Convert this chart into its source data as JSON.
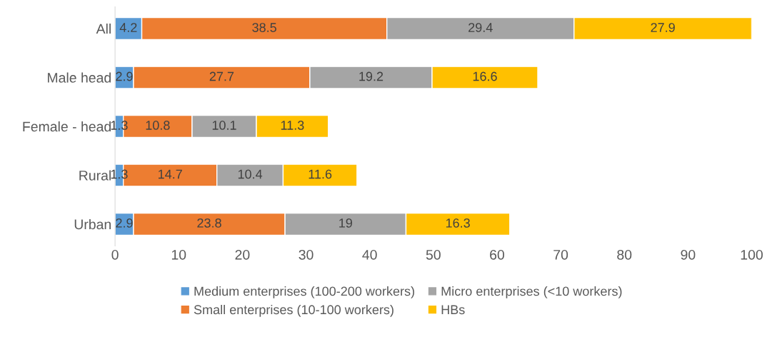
{
  "chart_data": {
    "type": "bar",
    "orientation": "horizontal",
    "stacked": true,
    "categories": [
      "All",
      "Male head",
      "Female - head",
      "Rural",
      "Urban"
    ],
    "series": [
      {
        "name": "Medium enterprises (100-200 workers)",
        "color": "#5b9bd5",
        "values": [
          4.2,
          2.9,
          1.3,
          1.3,
          2.9
        ]
      },
      {
        "name": "Small enterprises (10-100 workers)",
        "color": "#ed7d31",
        "values": [
          38.5,
          27.7,
          10.8,
          14.7,
          23.8
        ]
      },
      {
        "name": "Micro enterprises (<10 workers)",
        "color": "#a5a5a5",
        "values": [
          29.4,
          19.2,
          10.1,
          10.4,
          19
        ]
      },
      {
        "name": "HBs",
        "color": "#ffc000",
        "values": [
          27.9,
          16.6,
          11.3,
          11.6,
          16.3
        ]
      }
    ],
    "xlim": [
      0,
      100
    ],
    "xticks": [
      0,
      10,
      20,
      30,
      40,
      50,
      60,
      70,
      80,
      90,
      100
    ],
    "data_labels": true,
    "grid": false,
    "legend": "bottom"
  }
}
